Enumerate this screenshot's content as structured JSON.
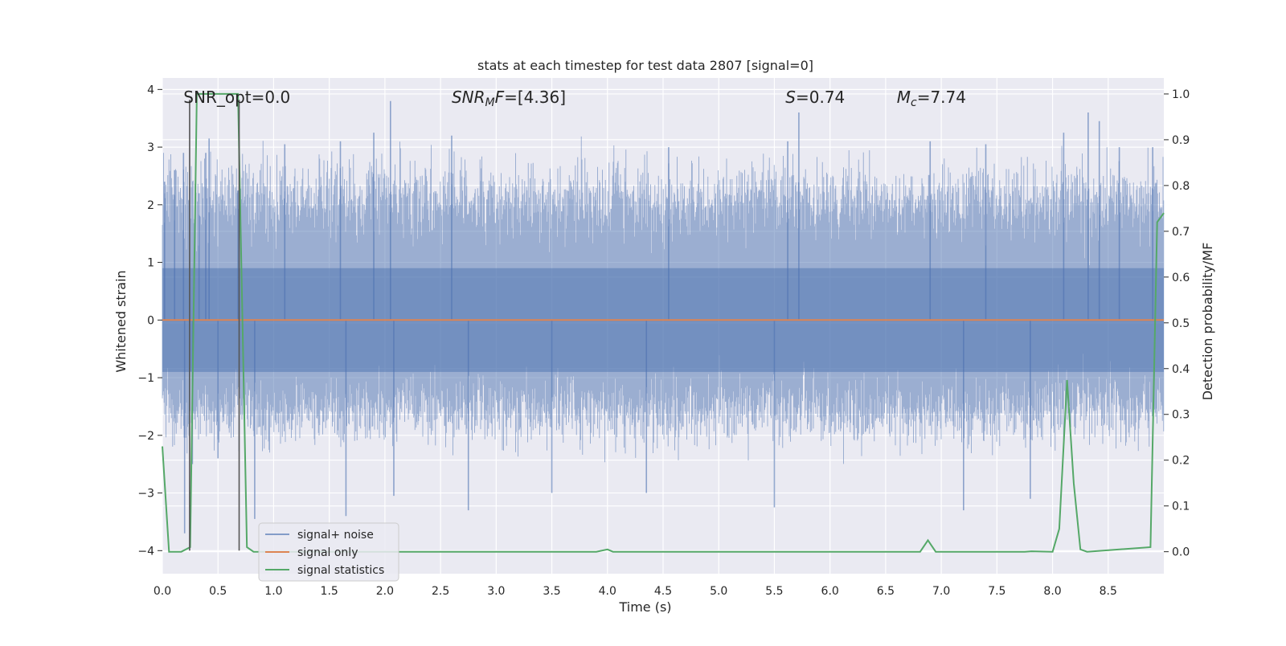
{
  "chart_data": {
    "type": "line",
    "title": "stats at each timestep for test data 2807 [signal=0]",
    "xlabel": "Time (s)",
    "ylabel_left": "Whitened strain",
    "ylabel_right": "Detection probability/MF",
    "xlim": [
      0.0,
      9.0
    ],
    "ylim_left": [
      -4.4,
      4.2
    ],
    "ylim_right": [
      -0.048,
      1.035
    ],
    "x_ticks": [
      0.0,
      0.5,
      1.0,
      1.5,
      2.0,
      2.5,
      3.0,
      3.5,
      4.0,
      4.5,
      5.0,
      5.5,
      6.0,
      6.5,
      7.0,
      7.5,
      8.0,
      8.5
    ],
    "x_tick_labels": [
      "0.0",
      "0.5",
      "1.0",
      "1.5",
      "2.0",
      "2.5",
      "3.0",
      "3.5",
      "4.0",
      "4.5",
      "5.0",
      "5.5",
      "6.0",
      "6.5",
      "7.0",
      "7.5",
      "8.0",
      "8.5"
    ],
    "y_ticks_left": [
      -4,
      -3,
      -2,
      -1,
      0,
      1,
      2,
      3,
      4
    ],
    "y_tick_labels_left": [
      "−4",
      "−3",
      "−2",
      "−1",
      "0",
      "1",
      "2",
      "3",
      "4"
    ],
    "y_ticks_right": [
      0.0,
      0.1,
      0.2,
      0.3,
      0.4,
      0.5,
      0.6,
      0.7,
      0.8,
      0.9,
      1.0
    ],
    "y_tick_labels_right": [
      "0.0",
      "0.1",
      "0.2",
      "0.3",
      "0.4",
      "0.5",
      "0.6",
      "0.7",
      "0.8",
      "0.9",
      "1.0"
    ],
    "grid": true,
    "legend_placement": "lower-left",
    "annotations": [
      {
        "type": "text",
        "x": 0.19,
        "y": 3.85,
        "text": "SNR_opt=0.0",
        "italic_prefix": ""
      },
      {
        "type": "math",
        "x": 2.6,
        "y": 3.85,
        "base": "SNR",
        "sub": "M",
        "rest": "F=[4.36]"
      },
      {
        "type": "math",
        "x": 5.6,
        "y": 3.85,
        "base": "S",
        "sub": "",
        "rest": "=0.74"
      },
      {
        "type": "math",
        "x": 6.6,
        "y": 3.85,
        "base": "M",
        "sub": "c",
        "rest": "=7.74"
      }
    ],
    "vertical_lines": [
      0.245,
      0.69
    ],
    "series": [
      {
        "name": "signal+ noise",
        "axis": "left",
        "color": "#4c72b0",
        "opacity": 0.5,
        "style": "dense-noise",
        "envelope_typical": [
          -1.6,
          2.1
        ],
        "spikes": [
          {
            "x": 0.02,
            "y": 2.4
          },
          {
            "x": 0.11,
            "y": 2.6
          },
          {
            "x": 0.19,
            "y": 2.9
          },
          {
            "x": 0.2,
            "y": -3.7
          },
          {
            "x": 0.27,
            "y": -2.5
          },
          {
            "x": 0.33,
            "y": 2.2
          },
          {
            "x": 0.39,
            "y": 2.9
          },
          {
            "x": 0.42,
            "y": 3.15
          },
          {
            "x": 0.5,
            "y": -2.4
          },
          {
            "x": 0.68,
            "y": 2.25
          },
          {
            "x": 0.83,
            "y": -3.45
          },
          {
            "x": 1.1,
            "y": 3.05
          },
          {
            "x": 1.6,
            "y": 3.1
          },
          {
            "x": 1.65,
            "y": -3.4
          },
          {
            "x": 1.9,
            "y": 3.25
          },
          {
            "x": 2.05,
            "y": 3.8
          },
          {
            "x": 2.08,
            "y": -3.05
          },
          {
            "x": 2.6,
            "y": 3.2
          },
          {
            "x": 2.75,
            "y": -3.3
          },
          {
            "x": 3.5,
            "y": -3.0
          },
          {
            "x": 4.35,
            "y": -3.0
          },
          {
            "x": 4.55,
            "y": 3.0
          },
          {
            "x": 5.5,
            "y": -3.25
          },
          {
            "x": 5.62,
            "y": 3.1
          },
          {
            "x": 5.72,
            "y": 3.6
          },
          {
            "x": 6.9,
            "y": 3.1
          },
          {
            "x": 7.2,
            "y": -3.3
          },
          {
            "x": 7.4,
            "y": 3.05
          },
          {
            "x": 7.8,
            "y": -3.1
          },
          {
            "x": 8.1,
            "y": 3.25
          },
          {
            "x": 8.32,
            "y": 3.6
          },
          {
            "x": 8.42,
            "y": 3.45
          },
          {
            "x": 8.6,
            "y": 3.0
          },
          {
            "x": 8.9,
            "y": 3.0
          }
        ]
      },
      {
        "name": "signal only",
        "axis": "left",
        "color": "#dd8452",
        "x": [
          0.0,
          9.0
        ],
        "y": [
          0.0,
          0.0
        ]
      },
      {
        "name": "signal statistics",
        "axis": "right",
        "color": "#55a868",
        "x": [
          0.0,
          0.06,
          0.17,
          0.25,
          0.31,
          0.68,
          0.76,
          0.82,
          3.9,
          4.0,
          4.05,
          6.81,
          6.88,
          6.95,
          7.75,
          7.81,
          8.0,
          8.06,
          8.13,
          8.19,
          8.25,
          8.31,
          8.88,
          8.94,
          9.0
        ],
        "y": [
          0.23,
          0.0,
          0.0,
          0.01,
          1.0,
          1.0,
          0.01,
          0.0,
          0.0,
          0.005,
          0.0,
          0.0,
          0.025,
          0.0,
          0.0,
          0.001,
          0.0,
          0.05,
          0.375,
          0.15,
          0.005,
          0.0,
          0.01,
          0.72,
          0.74
        ]
      }
    ]
  }
}
